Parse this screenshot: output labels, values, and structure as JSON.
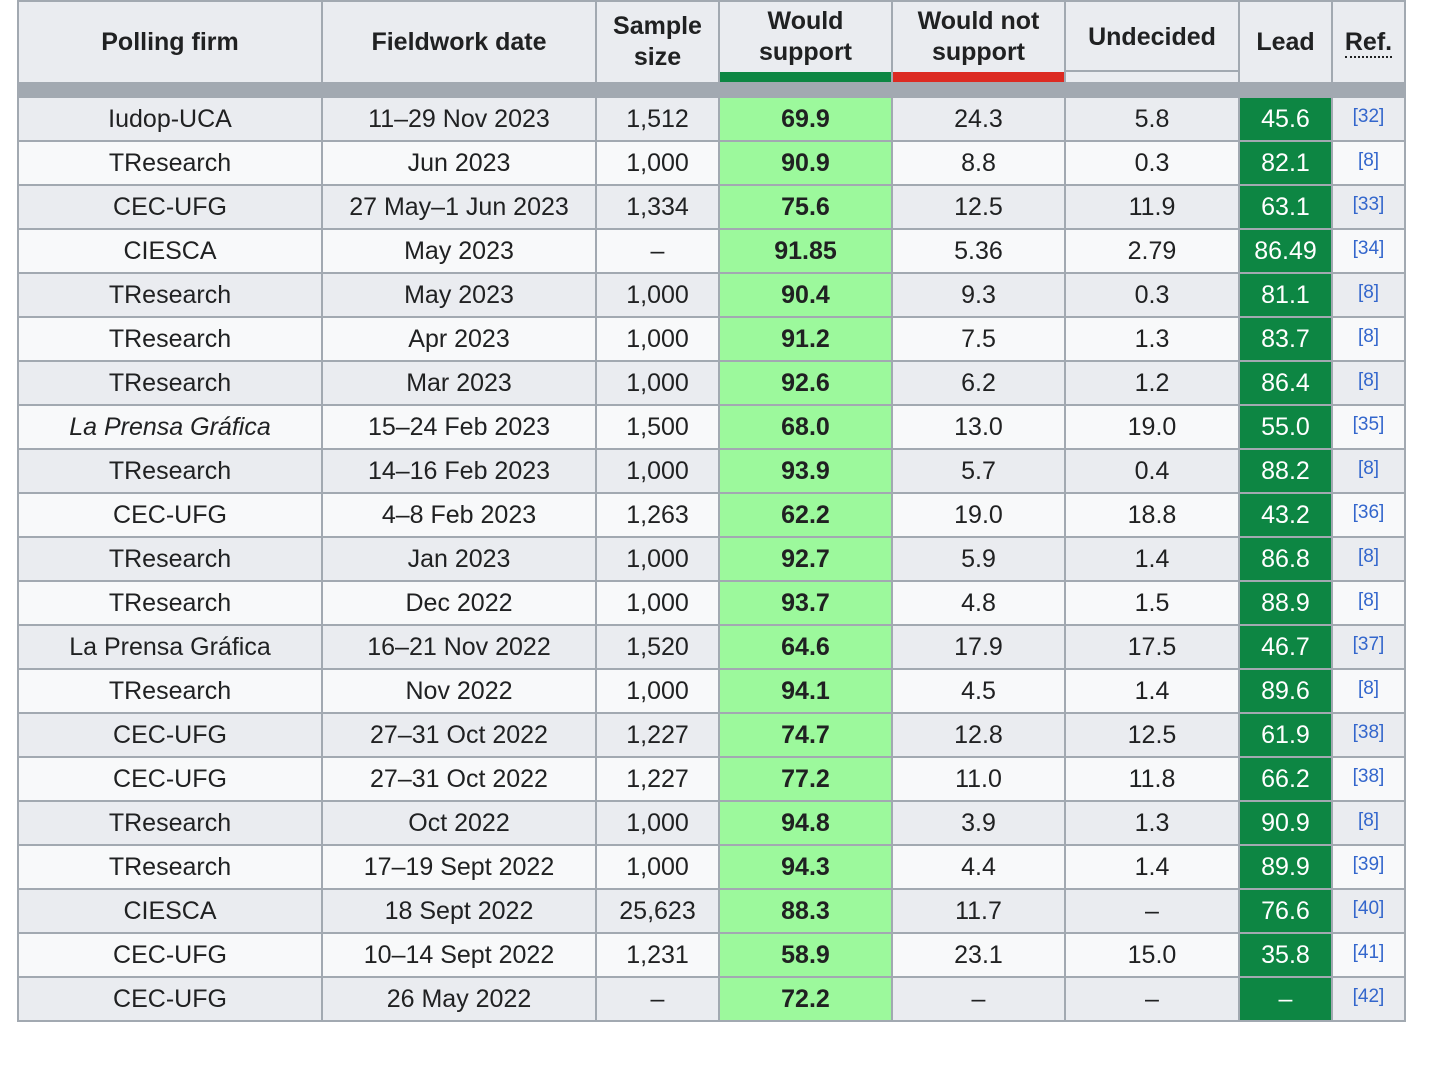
{
  "headers": {
    "firm": "Polling firm",
    "date": "Fieldwork date",
    "sample": "Sample size",
    "support": "Would support",
    "oppose": "Would not support",
    "undecided": "Undecided",
    "lead": "Lead",
    "ref": "Ref."
  },
  "colors": {
    "support_bar": "#0d8643",
    "oppose_bar": "#dc2a22",
    "support_cell": "#9cf99c",
    "lead_cell": "#0d8643",
    "link": "#3366cc"
  },
  "rows": [
    {
      "firm": "Iudop-UCA",
      "italic": false,
      "date": "11–29 Nov 2023",
      "sample": "1,512",
      "support": "69.9",
      "oppose": "24.3",
      "undecided": "5.8",
      "lead": "45.6",
      "ref": "[32]"
    },
    {
      "firm": "TResearch",
      "italic": false,
      "date": "Jun 2023",
      "sample": "1,000",
      "support": "90.9",
      "oppose": "8.8",
      "undecided": "0.3",
      "lead": "82.1",
      "ref": "[8]"
    },
    {
      "firm": "CEC-UFG",
      "italic": false,
      "date": "27 May–1 Jun 2023",
      "sample": "1,334",
      "support": "75.6",
      "oppose": "12.5",
      "undecided": "11.9",
      "lead": "63.1",
      "ref": "[33]"
    },
    {
      "firm": "CIESCA",
      "italic": false,
      "date": "May 2023",
      "sample": "–",
      "support": "91.85",
      "oppose": "5.36",
      "undecided": "2.79",
      "lead": "86.49",
      "ref": "[34]"
    },
    {
      "firm": "TResearch",
      "italic": false,
      "date": "May 2023",
      "sample": "1,000",
      "support": "90.4",
      "oppose": "9.3",
      "undecided": "0.3",
      "lead": "81.1",
      "ref": "[8]"
    },
    {
      "firm": "TResearch",
      "italic": false,
      "date": "Apr 2023",
      "sample": "1,000",
      "support": "91.2",
      "oppose": "7.5",
      "undecided": "1.3",
      "lead": "83.7",
      "ref": "[8]"
    },
    {
      "firm": "TResearch",
      "italic": false,
      "date": "Mar 2023",
      "sample": "1,000",
      "support": "92.6",
      "oppose": "6.2",
      "undecided": "1.2",
      "lead": "86.4",
      "ref": "[8]"
    },
    {
      "firm": "La Prensa Gráfica",
      "italic": true,
      "date": "15–24 Feb 2023",
      "sample": "1,500",
      "support": "68.0",
      "oppose": "13.0",
      "undecided": "19.0",
      "lead": "55.0",
      "ref": "[35]"
    },
    {
      "firm": "TResearch",
      "italic": false,
      "date": "14–16 Feb 2023",
      "sample": "1,000",
      "support": "93.9",
      "oppose": "5.7",
      "undecided": "0.4",
      "lead": "88.2",
      "ref": "[8]"
    },
    {
      "firm": "CEC-UFG",
      "italic": false,
      "date": "4–8 Feb 2023",
      "sample": "1,263",
      "support": "62.2",
      "oppose": "19.0",
      "undecided": "18.8",
      "lead": "43.2",
      "ref": "[36]"
    },
    {
      "firm": "TResearch",
      "italic": false,
      "date": "Jan 2023",
      "sample": "1,000",
      "support": "92.7",
      "oppose": "5.9",
      "undecided": "1.4",
      "lead": "86.8",
      "ref": "[8]"
    },
    {
      "firm": "TResearch",
      "italic": false,
      "date": "Dec 2022",
      "sample": "1,000",
      "support": "93.7",
      "oppose": "4.8",
      "undecided": "1.5",
      "lead": "88.9",
      "ref": "[8]"
    },
    {
      "firm": "La Prensa Gráfica",
      "italic": false,
      "date": "16–21 Nov 2022",
      "sample": "1,520",
      "support": "64.6",
      "oppose": "17.9",
      "undecided": "17.5",
      "lead": "46.7",
      "ref": "[37]"
    },
    {
      "firm": "TResearch",
      "italic": false,
      "date": "Nov 2022",
      "sample": "1,000",
      "support": "94.1",
      "oppose": "4.5",
      "undecided": "1.4",
      "lead": "89.6",
      "ref": "[8]"
    },
    {
      "firm": "CEC-UFG",
      "italic": false,
      "date": "27–31 Oct 2022",
      "sample": "1,227",
      "support": "74.7",
      "oppose": "12.8",
      "undecided": "12.5",
      "lead": "61.9",
      "ref": "[38]"
    },
    {
      "firm": "CEC-UFG",
      "italic": false,
      "date": "27–31 Oct 2022",
      "sample": "1,227",
      "support": "77.2",
      "oppose": "11.0",
      "undecided": "11.8",
      "lead": "66.2",
      "ref": "[38]"
    },
    {
      "firm": "TResearch",
      "italic": false,
      "date": "Oct 2022",
      "sample": "1,000",
      "support": "94.8",
      "oppose": "3.9",
      "undecided": "1.3",
      "lead": "90.9",
      "ref": "[8]"
    },
    {
      "firm": "TResearch",
      "italic": false,
      "date": "17–19 Sept 2022",
      "sample": "1,000",
      "support": "94.3",
      "oppose": "4.4",
      "undecided": "1.4",
      "lead": "89.9",
      "ref": "[39]"
    },
    {
      "firm": "CIESCA",
      "italic": false,
      "date": "18 Sept 2022",
      "sample": "25,623",
      "support": "88.3",
      "oppose": "11.7",
      "undecided": "–",
      "lead": "76.6",
      "ref": "[40]"
    },
    {
      "firm": "CEC-UFG",
      "italic": false,
      "date": "10–14 Sept 2022",
      "sample": "1,231",
      "support": "58.9",
      "oppose": "23.1",
      "undecided": "15.0",
      "lead": "35.8",
      "ref": "[41]"
    },
    {
      "firm": "CEC-UFG",
      "italic": false,
      "date": "26 May 2022",
      "sample": "–",
      "support": "72.2",
      "oppose": "–",
      "undecided": "–",
      "lead": "–",
      "ref": "[42]"
    }
  ]
}
